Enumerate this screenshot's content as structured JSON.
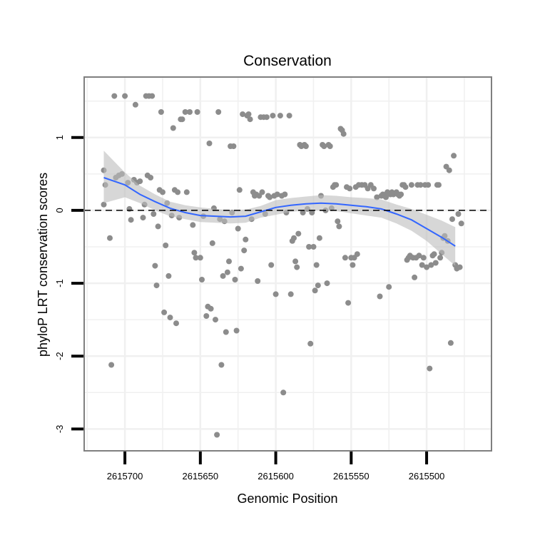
{
  "chart_data": {
    "type": "scatter",
    "title": "Conservation",
    "xlabel": "Genomic Position",
    "ylabel": "phyloP LRT conservation scores",
    "x_reversed": true,
    "xlim": [
      2615727,
      2615457
    ],
    "ylim": [
      -3.3,
      1.83
    ],
    "x_ticks": [
      {
        "value": 2615700,
        "label": "2615700"
      },
      {
        "value": 2615650,
        "label": "2615650"
      },
      {
        "value": 2615600,
        "label": "2615600"
      },
      {
        "value": 2615550,
        "label": "2615550"
      },
      {
        "value": 2615500,
        "label": "2615500"
      }
    ],
    "y_ticks": [
      {
        "value": 1,
        "label": "1"
      },
      {
        "value": 0,
        "label": "0"
      },
      {
        "value": -1,
        "label": "-1"
      },
      {
        "value": -2,
        "label": "-2"
      },
      {
        "value": -3,
        "label": "-3"
      }
    ],
    "reference_line": {
      "y": 0,
      "style": "dashed"
    },
    "colors": {
      "points": "#8c8c8c",
      "smooth": "#3366ff",
      "ribbon": "#bdbdbd",
      "grid": "#f0f0f0",
      "frame": "#7f7f7f"
    },
    "smooth": {
      "x": [
        2615714,
        2615700,
        2615690,
        2615680,
        2615670,
        2615660,
        2615650,
        2615640,
        2615630,
        2615620,
        2615610,
        2615600,
        2615590,
        2615580,
        2615570,
        2615560,
        2615550,
        2615540,
        2615530,
        2615520,
        2615510,
        2615500,
        2615490,
        2615481
      ],
      "y": [
        0.45,
        0.35,
        0.22,
        0.12,
        0.03,
        -0.03,
        -0.07,
        -0.08,
        -0.09,
        -0.08,
        -0.02,
        0.04,
        0.07,
        0.09,
        0.1,
        0.09,
        0.07,
        0.05,
        0.02,
        -0.05,
        -0.13,
        -0.25,
        -0.37,
        -0.49
      ],
      "lower": [
        0.1,
        0.18,
        0.1,
        0.0,
        -0.08,
        -0.12,
        -0.16,
        -0.17,
        -0.18,
        -0.17,
        -0.1,
        -0.06,
        -0.02,
        0.0,
        0.0,
        -0.01,
        -0.04,
        -0.07,
        -0.1,
        -0.18,
        -0.28,
        -0.42,
        -0.6,
        -0.76
      ],
      "upper": [
        0.82,
        0.52,
        0.34,
        0.22,
        0.12,
        0.07,
        0.04,
        0.02,
        0.0,
        0.01,
        0.06,
        0.14,
        0.17,
        0.19,
        0.21,
        0.2,
        0.18,
        0.17,
        0.15,
        0.08,
        0.02,
        -0.06,
        -0.14,
        -0.23
      ]
    },
    "points": [
      {
        "x": 2615714,
        "y": 0.55
      },
      {
        "x": 2615713,
        "y": 0.35
      },
      {
        "x": 2615714,
        "y": 0.08
      },
      {
        "x": 2615710,
        "y": -0.38
      },
      {
        "x": 2615709,
        "y": -2.12
      },
      {
        "x": 2615707,
        "y": 1.57
      },
      {
        "x": 2615706,
        "y": 0.45
      },
      {
        "x": 2615704,
        "y": 0.48
      },
      {
        "x": 2615702,
        "y": 0.5
      },
      {
        "x": 2615700,
        "y": 1.57
      },
      {
        "x": 2615698,
        "y": 0.38
      },
      {
        "x": 2615697,
        "y": 0.02
      },
      {
        "x": 2615696,
        "y": -0.13
      },
      {
        "x": 2615694,
        "y": 0.42
      },
      {
        "x": 2615693,
        "y": 1.45
      },
      {
        "x": 2615692,
        "y": 0.38
      },
      {
        "x": 2615690,
        "y": 0.4
      },
      {
        "x": 2615688,
        "y": -0.1
      },
      {
        "x": 2615687,
        "y": 0.08
      },
      {
        "x": 2615686,
        "y": 1.57
      },
      {
        "x": 2615685,
        "y": 0.48
      },
      {
        "x": 2615684,
        "y": 1.57
      },
      {
        "x": 2615683,
        "y": 0.45
      },
      {
        "x": 2615682,
        "y": 1.57
      },
      {
        "x": 2615681,
        "y": -0.05
      },
      {
        "x": 2615680,
        "y": -0.76
      },
      {
        "x": 2615679,
        "y": -1.03
      },
      {
        "x": 2615678,
        "y": -0.22
      },
      {
        "x": 2615677,
        "y": 0.28
      },
      {
        "x": 2615676,
        "y": 1.35
      },
      {
        "x": 2615675,
        "y": 0.25
      },
      {
        "x": 2615674,
        "y": -1.4
      },
      {
        "x": 2615673,
        "y": -0.48
      },
      {
        "x": 2615672,
        "y": 0.1
      },
      {
        "x": 2615671,
        "y": -0.9
      },
      {
        "x": 2615670,
        "y": -1.47
      },
      {
        "x": 2615669,
        "y": -0.07
      },
      {
        "x": 2615668,
        "y": 1.13
      },
      {
        "x": 2615667,
        "y": 0.28
      },
      {
        "x": 2615666,
        "y": -1.55
      },
      {
        "x": 2615665,
        "y": 0.25
      },
      {
        "x": 2615664,
        "y": -0.1
      },
      {
        "x": 2615663,
        "y": 1.25
      },
      {
        "x": 2615662,
        "y": 1.25
      },
      {
        "x": 2615660,
        "y": 1.35
      },
      {
        "x": 2615659,
        "y": 0.25
      },
      {
        "x": 2615657,
        "y": 1.35
      },
      {
        "x": 2615655,
        "y": -0.2
      },
      {
        "x": 2615654,
        "y": -0.58
      },
      {
        "x": 2615653,
        "y": -0.65
      },
      {
        "x": 2615652,
        "y": 1.35
      },
      {
        "x": 2615650,
        "y": -0.65
      },
      {
        "x": 2615649,
        "y": -0.95
      },
      {
        "x": 2615648,
        "y": -0.08
      },
      {
        "x": 2615646,
        "y": -1.45
      },
      {
        "x": 2615645,
        "y": -1.32
      },
      {
        "x": 2615644,
        "y": 0.92
      },
      {
        "x": 2615643,
        "y": -1.35
      },
      {
        "x": 2615642,
        "y": -0.45
      },
      {
        "x": 2615641,
        "y": 0.03
      },
      {
        "x": 2615640,
        "y": -1.5
      },
      {
        "x": 2615639,
        "y": -3.08
      },
      {
        "x": 2615638,
        "y": 1.35
      },
      {
        "x": 2615637,
        "y": -0.12
      },
      {
        "x": 2615636,
        "y": -2.12
      },
      {
        "x": 2615635,
        "y": -0.9
      },
      {
        "x": 2615634,
        "y": -0.15
      },
      {
        "x": 2615633,
        "y": -1.67
      },
      {
        "x": 2615632,
        "y": -0.85
      },
      {
        "x": 2615631,
        "y": -0.7
      },
      {
        "x": 2615630,
        "y": 0.88
      },
      {
        "x": 2615629,
        "y": -0.03
      },
      {
        "x": 2615628,
        "y": 0.88
      },
      {
        "x": 2615627,
        "y": -0.95
      },
      {
        "x": 2615626,
        "y": -1.65
      },
      {
        "x": 2615625,
        "y": -0.25
      },
      {
        "x": 2615624,
        "y": 0.28
      },
      {
        "x": 2615623,
        "y": -0.8
      },
      {
        "x": 2615622,
        "y": 1.32
      },
      {
        "x": 2615621,
        "y": -0.55
      },
      {
        "x": 2615620,
        "y": -0.4
      },
      {
        "x": 2615619,
        "y": 1.3
      },
      {
        "x": 2615618,
        "y": 1.32
      },
      {
        "x": 2615617,
        "y": 1.25
      },
      {
        "x": 2615616,
        "y": -0.12
      },
      {
        "x": 2615615,
        "y": 0.25
      },
      {
        "x": 2615614,
        "y": 0.2
      },
      {
        "x": 2615613,
        "y": 0.22
      },
      {
        "x": 2615612,
        "y": -0.97
      },
      {
        "x": 2615611,
        "y": 0.2
      },
      {
        "x": 2615610,
        "y": 1.28
      },
      {
        "x": 2615609,
        "y": 0.25
      },
      {
        "x": 2615608,
        "y": 1.28
      },
      {
        "x": 2615607,
        "y": -0.05
      },
      {
        "x": 2615606,
        "y": 1.28
      },
      {
        "x": 2615605,
        "y": 0.2
      },
      {
        "x": 2615604,
        "y": 0.18
      },
      {
        "x": 2615603,
        "y": -0.75
      },
      {
        "x": 2615602,
        "y": 1.3
      },
      {
        "x": 2615601,
        "y": 0.2
      },
      {
        "x": 2615600,
        "y": -1.15
      },
      {
        "x": 2615599,
        "y": 0.22
      },
      {
        "x": 2615597,
        "y": 1.3
      },
      {
        "x": 2615596,
        "y": 0.2
      },
      {
        "x": 2615595,
        "y": -2.5
      },
      {
        "x": 2615594,
        "y": 0.22
      },
      {
        "x": 2615593,
        "y": -0.03
      },
      {
        "x": 2615591,
        "y": 1.3
      },
      {
        "x": 2615590,
        "y": -1.15
      },
      {
        "x": 2615589,
        "y": -0.42
      },
      {
        "x": 2615588,
        "y": -0.38
      },
      {
        "x": 2615587,
        "y": -0.7
      },
      {
        "x": 2615586,
        "y": -0.78
      },
      {
        "x": 2615585,
        "y": -0.32
      },
      {
        "x": 2615584,
        "y": 0.9
      },
      {
        "x": 2615583,
        "y": 0.88
      },
      {
        "x": 2615582,
        "y": -0.03
      },
      {
        "x": 2615581,
        "y": 0.9
      },
      {
        "x": 2615580,
        "y": 0.88
      },
      {
        "x": 2615579,
        "y": 0.02
      },
      {
        "x": 2615578,
        "y": -0.5
      },
      {
        "x": 2615577,
        "y": -1.83
      },
      {
        "x": 2615576,
        "y": -0.03
      },
      {
        "x": 2615575,
        "y": -0.5
      },
      {
        "x": 2615574,
        "y": -1.1
      },
      {
        "x": 2615573,
        "y": -0.75
      },
      {
        "x": 2615572,
        "y": -1.03
      },
      {
        "x": 2615571,
        "y": -0.38
      },
      {
        "x": 2615570,
        "y": 0.2
      },
      {
        "x": 2615569,
        "y": 0.9
      },
      {
        "x": 2615568,
        "y": 0.88
      },
      {
        "x": 2615567,
        "y": 0.0
      },
      {
        "x": 2615566,
        "y": -1.0
      },
      {
        "x": 2615565,
        "y": 0.9
      },
      {
        "x": 2615564,
        "y": 0.88
      },
      {
        "x": 2615563,
        "y": 0.03
      },
      {
        "x": 2615562,
        "y": 0.32
      },
      {
        "x": 2615561,
        "y": 0.35
      },
      {
        "x": 2615560,
        "y": 0.35
      },
      {
        "x": 2615559,
        "y": -0.15
      },
      {
        "x": 2615558,
        "y": -0.22
      },
      {
        "x": 2615557,
        "y": 1.12
      },
      {
        "x": 2615556,
        "y": 1.1
      },
      {
        "x": 2615555,
        "y": 1.05
      },
      {
        "x": 2615554,
        "y": -0.65
      },
      {
        "x": 2615553,
        "y": 0.32
      },
      {
        "x": 2615552,
        "y": -1.27
      },
      {
        "x": 2615551,
        "y": 0.3
      },
      {
        "x": 2615550,
        "y": -0.65
      },
      {
        "x": 2615549,
        "y": -0.75
      },
      {
        "x": 2615548,
        "y": -0.65
      },
      {
        "x": 2615547,
        "y": 0.32
      },
      {
        "x": 2615546,
        "y": -0.6
      },
      {
        "x": 2615545,
        "y": 0.35
      },
      {
        "x": 2615543,
        "y": 0.35
      },
      {
        "x": 2615541,
        "y": 0.35
      },
      {
        "x": 2615539,
        "y": 0.3
      },
      {
        "x": 2615537,
        "y": 0.35
      },
      {
        "x": 2615535,
        "y": 0.3
      },
      {
        "x": 2615533,
        "y": 0.18
      },
      {
        "x": 2615531,
        "y": -1.18
      },
      {
        "x": 2615530,
        "y": 0.2
      },
      {
        "x": 2615529,
        "y": 0.22
      },
      {
        "x": 2615528,
        "y": 0.2
      },
      {
        "x": 2615527,
        "y": 0.18
      },
      {
        "x": 2615526,
        "y": 0.25
      },
      {
        "x": 2615525,
        "y": -1.05
      },
      {
        "x": 2615524,
        "y": 0.22
      },
      {
        "x": 2615523,
        "y": 0.25
      },
      {
        "x": 2615522,
        "y": 0.22
      },
      {
        "x": 2615520,
        "y": 0.25
      },
      {
        "x": 2615519,
        "y": 0.22
      },
      {
        "x": 2615518,
        "y": 0.2
      },
      {
        "x": 2615517,
        "y": 0.22
      },
      {
        "x": 2615516,
        "y": 0.35
      },
      {
        "x": 2615515,
        "y": 0.35
      },
      {
        "x": 2615514,
        "y": 0.32
      },
      {
        "x": 2615513,
        "y": -0.68
      },
      {
        "x": 2615512,
        "y": -0.65
      },
      {
        "x": 2615511,
        "y": -0.62
      },
      {
        "x": 2615510,
        "y": 0.35
      },
      {
        "x": 2615509,
        "y": -0.65
      },
      {
        "x": 2615508,
        "y": -0.92
      },
      {
        "x": 2615507,
        "y": -0.65
      },
      {
        "x": 2615506,
        "y": 0.35
      },
      {
        "x": 2615505,
        "y": -0.62
      },
      {
        "x": 2615504,
        "y": 0.35
      },
      {
        "x": 2615503,
        "y": -0.75
      },
      {
        "x": 2615502,
        "y": -0.65
      },
      {
        "x": 2615501,
        "y": 0.35
      },
      {
        "x": 2615500,
        "y": -0.78
      },
      {
        "x": 2615499,
        "y": 0.35
      },
      {
        "x": 2615498,
        "y": -2.17
      },
      {
        "x": 2615497,
        "y": -0.75
      },
      {
        "x": 2615496,
        "y": -0.62
      },
      {
        "x": 2615495,
        "y": -0.6
      },
      {
        "x": 2615494,
        "y": -0.72
      },
      {
        "x": 2615493,
        "y": 0.35
      },
      {
        "x": 2615492,
        "y": 0.35
      },
      {
        "x": 2615491,
        "y": -0.65
      },
      {
        "x": 2615490,
        "y": -0.58
      },
      {
        "x": 2615489,
        "y": -0.38
      },
      {
        "x": 2615488,
        "y": -0.35
      },
      {
        "x": 2615487,
        "y": 0.6
      },
      {
        "x": 2615486,
        "y": -0.42
      },
      {
        "x": 2615485,
        "y": 0.55
      },
      {
        "x": 2615484,
        "y": -1.82
      },
      {
        "x": 2615483,
        "y": -0.12
      },
      {
        "x": 2615482,
        "y": 0.75
      },
      {
        "x": 2615481,
        "y": -0.75
      },
      {
        "x": 2615480,
        "y": -0.8
      },
      {
        "x": 2615479,
        "y": -0.05
      },
      {
        "x": 2615478,
        "y": -0.78
      },
      {
        "x": 2615477,
        "y": -0.18
      }
    ]
  }
}
